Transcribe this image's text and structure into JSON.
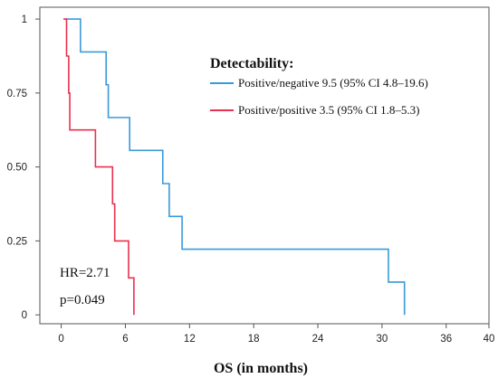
{
  "chart_data": {
    "type": "line",
    "step": true,
    "xlabel": "OS (in months)",
    "ylabel": "",
    "xlim": [
      -2,
      40
    ],
    "ylim": [
      -0.03,
      1.04
    ],
    "x_ticks": [
      0,
      6,
      12,
      18,
      24,
      30,
      36,
      40
    ],
    "x_tick_labels": [
      "0",
      "6",
      "12",
      "18",
      "24",
      "30",
      "36",
      "40"
    ],
    "y_ticks": [
      0,
      0.25,
      0.5,
      0.75,
      1
    ],
    "y_tick_labels": [
      "0",
      "0.25",
      "0.50",
      "0.75",
      "1"
    ],
    "grid": false,
    "legend": {
      "title": "Detectability:",
      "placement": "top-right",
      "entries": [
        {
          "label": "Positive/negative 9.5 (95% CI 4.8–19.6)",
          "color": "#3a9ad9"
        },
        {
          "label": "Positive/positive 3.5 (95% CI 1.8–5.3)",
          "color": "#e8314f"
        }
      ]
    },
    "annotations": [
      "HR=2.71",
      "p=0.049"
    ],
    "series": [
      {
        "color": "#3a9ad9",
        "points": [
          [
            0.4,
            1.0
          ],
          [
            1.8,
            1.0
          ],
          [
            1.8,
            0.889
          ],
          [
            4.2,
            0.889
          ],
          [
            4.2,
            0.778
          ],
          [
            4.4,
            0.778
          ],
          [
            4.4,
            0.667
          ],
          [
            6.4,
            0.667
          ],
          [
            6.4,
            0.556
          ],
          [
            9.5,
            0.556
          ],
          [
            9.5,
            0.444
          ],
          [
            10.1,
            0.444
          ],
          [
            10.1,
            0.333
          ],
          [
            11.3,
            0.333
          ],
          [
            11.3,
            0.222
          ],
          [
            30.6,
            0.222
          ],
          [
            30.6,
            0.111
          ],
          [
            32.1,
            0.111
          ],
          [
            32.1,
            0.0
          ]
        ]
      },
      {
        "color": "#e8314f",
        "points": [
          [
            0.2,
            1.0
          ],
          [
            0.5,
            1.0
          ],
          [
            0.5,
            0.875
          ],
          [
            0.7,
            0.875
          ],
          [
            0.7,
            0.75
          ],
          [
            0.8,
            0.75
          ],
          [
            0.8,
            0.625
          ],
          [
            3.2,
            0.625
          ],
          [
            3.2,
            0.5
          ],
          [
            4.8,
            0.5
          ],
          [
            4.8,
            0.375
          ],
          [
            5.0,
            0.375
          ],
          [
            5.0,
            0.25
          ],
          [
            6.3,
            0.25
          ],
          [
            6.3,
            0.125
          ],
          [
            6.8,
            0.125
          ],
          [
            6.8,
            0.0
          ]
        ]
      }
    ]
  }
}
